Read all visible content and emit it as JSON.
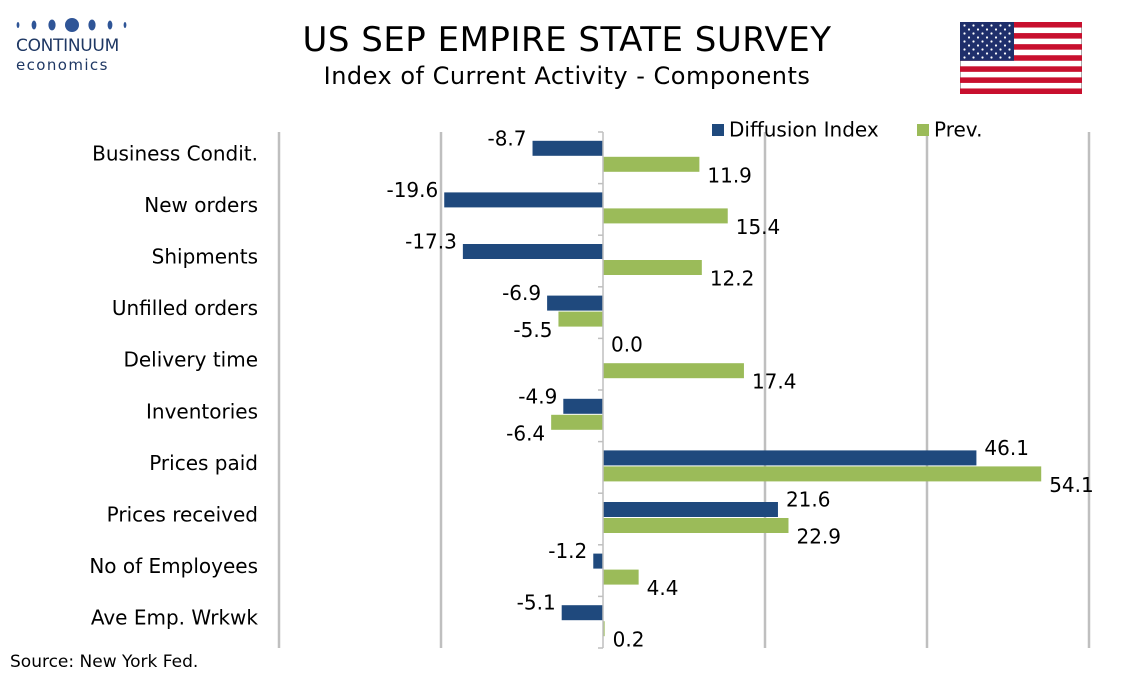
{
  "header": {
    "logo_name": "CONTINUUM",
    "logo_sub": "economics",
    "flag_icon": "us-flag-icon"
  },
  "chart_data": {
    "type": "bar",
    "orientation": "horizontal",
    "title": "US SEP EMPIRE STATE SURVEY",
    "subtitle": "Index of Current Activity - Components",
    "categories": [
      "Business Condit.",
      "New orders ",
      "Shipments ",
      "Unfilled orders",
      "Delivery time",
      "Inventories",
      "Prices paid",
      "Prices received",
      "No of Employees",
      "Ave Emp. Wrkwk"
    ],
    "series": [
      {
        "name": "Diffusion Index",
        "color": "#1f497d",
        "values": [
          -8.7,
          -19.6,
          -17.3,
          -6.9,
          0.0,
          -4.9,
          46.1,
          21.6,
          -1.2,
          -5.1
        ]
      },
      {
        "name": "Prev.",
        "color": "#9bbb59",
        "values": [
          11.9,
          15.4,
          12.2,
          -5.5,
          17.4,
          -6.4,
          54.1,
          22.9,
          4.4,
          0.2
        ]
      }
    ],
    "xlim": [
      -40,
      60
    ],
    "gridlines_at": [
      -40,
      -20,
      0,
      20,
      40,
      60
    ],
    "grid": true,
    "legend_placement": "top-right",
    "source": "Source: New York Fed."
  }
}
